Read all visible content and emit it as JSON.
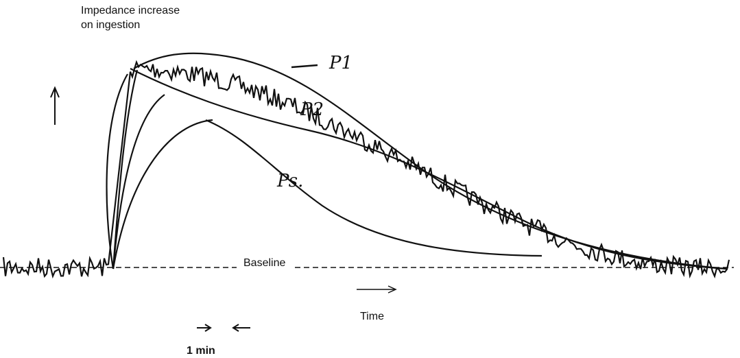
{
  "y_axis_label": {
    "lines": [
      "Impedance increase",
      "on ingestion"
    ]
  },
  "curves": [
    {
      "label": "P1"
    },
    {
      "label": "P2"
    },
    {
      "label": "Ps."
    }
  ],
  "baseline_label": "Baseline",
  "time_label": "Time",
  "scale_label": "1 min"
}
